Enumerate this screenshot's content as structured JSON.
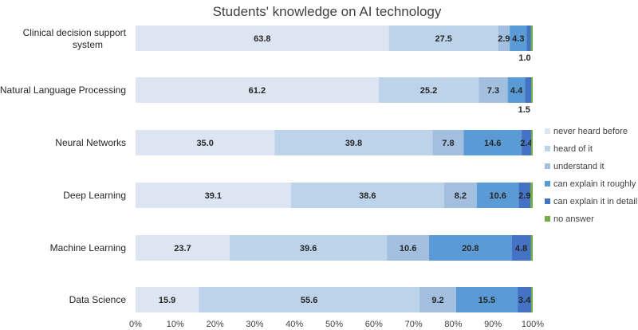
{
  "chart_data": {
    "type": "bar",
    "orientation": "horizontal",
    "stacked": "100%",
    "title": "Students' knowledge on AI technology",
    "xlabel": "",
    "ylabel": "",
    "xlim": [
      0,
      100
    ],
    "x_ticks": [
      "0%",
      "10%",
      "20%",
      "30%",
      "40%",
      "50%",
      "60%",
      "70%",
      "80%",
      "90%",
      "100%"
    ],
    "grid": false,
    "legend_position": "right",
    "categories": [
      {
        "line1": "Clinical decision support",
        "line2": "system"
      },
      {
        "line1": "Natural Language Processing",
        "line2": ""
      },
      {
        "line1": "Neural Networks",
        "line2": ""
      },
      {
        "line1": "Deep Learning",
        "line2": ""
      },
      {
        "line1": "Machine Learning",
        "line2": ""
      },
      {
        "line1": "Data Science",
        "line2": ""
      }
    ],
    "series": [
      {
        "name": "never heard before",
        "color": "#dde5f2",
        "values": [
          63.8,
          61.2,
          35.0,
          39.1,
          23.7,
          15.9
        ],
        "labels": [
          "63.8",
          "61.2",
          "35.0",
          "39.1",
          "23.7",
          "15.9"
        ]
      },
      {
        "name": "heard of it",
        "color": "#bcd3ea",
        "values": [
          27.5,
          25.2,
          39.8,
          38.6,
          39.6,
          55.6
        ],
        "labels": [
          "27.5",
          "25.2",
          "39.8",
          "38.6",
          "39.6",
          "55.6"
        ]
      },
      {
        "name": "understand it",
        "color": "#a3bfdf",
        "values": [
          2.9,
          7.3,
          7.8,
          8.2,
          10.6,
          9.2
        ],
        "labels": [
          "2.9",
          "7.3",
          "7.8",
          "8.2",
          "10.6",
          "9.2"
        ]
      },
      {
        "name": "can explain it roughly",
        "color": "#5b9bd5",
        "values": [
          4.3,
          4.4,
          14.6,
          10.6,
          20.8,
          15.5
        ],
        "labels": [
          "4.3",
          "4.4",
          "14.6",
          "10.6",
          "20.8",
          "15.5"
        ]
      },
      {
        "name": "can explain it in detail",
        "color": "#4472c4",
        "values": [
          1.0,
          1.5,
          2.4,
          2.9,
          4.8,
          3.4
        ],
        "labels": [
          "1.0",
          "1.5",
          "2.4",
          "2.9",
          "4.8",
          "3.4"
        ]
      },
      {
        "name": "no answer",
        "color": "#70ad47",
        "values": [
          0.5,
          0.4,
          0.4,
          0.6,
          0.5,
          0.4
        ],
        "labels": [
          "",
          "",
          "",
          "",
          "",
          ""
        ]
      }
    ]
  }
}
